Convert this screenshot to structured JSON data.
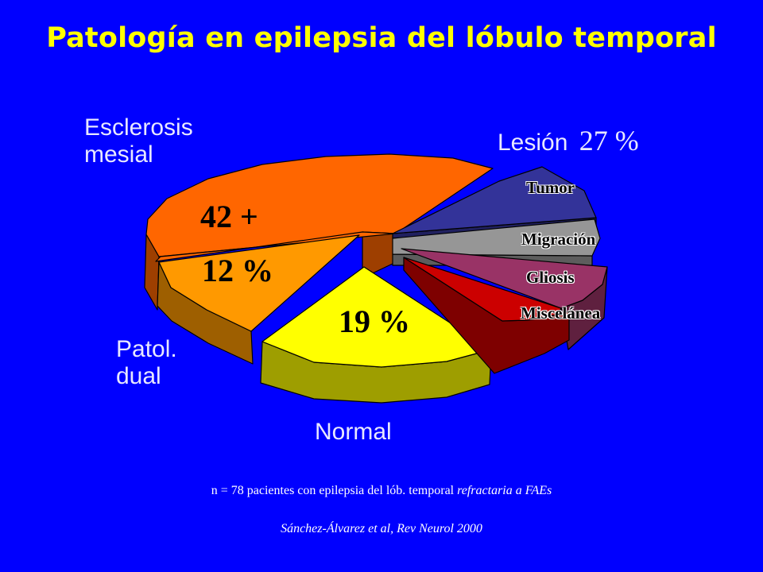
{
  "title": "Patología en epilepsia del lóbulo temporal",
  "colors": {
    "background": "#0000ff",
    "title": "#ffff00"
  },
  "labels": {
    "esclerosis_line1": "Esclerosis",
    "esclerosis_line2": "mesial",
    "lesion": "Lesión",
    "lesion_pct": "27 %",
    "patol_line1": "Patol.",
    "patol_line2": "dual",
    "normal": "Normal",
    "mesial_value": "42 +",
    "dual_value": "12 %",
    "normal_value": "19 %"
  },
  "chart_data": {
    "type": "pie",
    "style": "3d exploded",
    "slices": [
      {
        "name": "Esclerosis mesial",
        "value": 42,
        "color": "#ff6600"
      },
      {
        "name": "Patol. dual",
        "value": 12,
        "color": "#ff9900"
      },
      {
        "name": "Normal",
        "value": 19,
        "color": "#ffff00"
      },
      {
        "name": "Miscelánea",
        "color": "#cc0000"
      },
      {
        "name": "Gliosis",
        "color": "#993366"
      },
      {
        "name": "Migración",
        "color": "#969696"
      },
      {
        "name": "Tumor",
        "color": "#333399"
      }
    ],
    "group": {
      "name": "Lesión",
      "value": 27
    }
  },
  "footnote": {
    "text": "n = 78 pacientes con epilepsia del lób. temporal",
    "italic": "refractaria a FAEs"
  },
  "citation": "Sánchez-Álvarez et al, Rev Neurol 2000"
}
